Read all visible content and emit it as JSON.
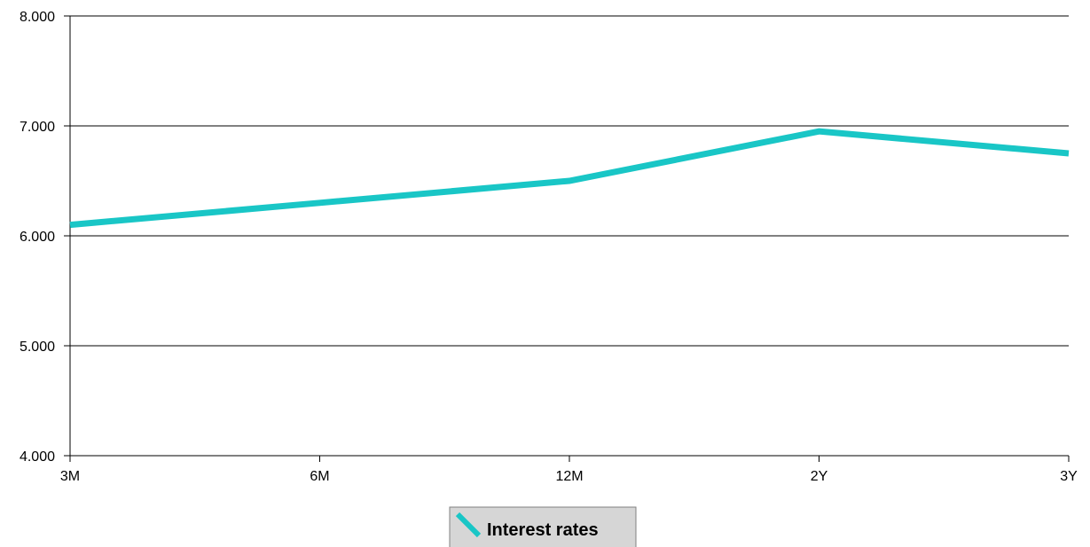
{
  "chart_data": {
    "type": "line",
    "categories": [
      "3M",
      "6M",
      "12M",
      "2Y",
      "3Y"
    ],
    "series": [
      {
        "name": "Interest rates",
        "values": [
          6.1,
          6.3,
          6.5,
          6.95,
          6.75
        ],
        "color": "#19c6c6"
      }
    ],
    "y_ticks": [
      "4.000",
      "5.000",
      "6.000",
      "7.000",
      "8.000"
    ],
    "ylim": [
      4,
      8
    ],
    "grid": "horizontal",
    "legend_position": "bottom-center"
  }
}
